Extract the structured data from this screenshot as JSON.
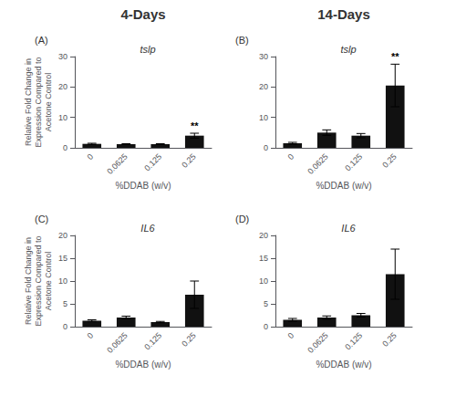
{
  "chart_data": [
    {
      "type": "bar",
      "title": "tslp",
      "categories": [
        "0",
        "0.0625",
        "0.125",
        "0.25"
      ],
      "values": [
        1.3,
        1.2,
        1.2,
        4.0
      ],
      "errors": [
        0.2,
        0.15,
        0.15,
        0.8
      ],
      "color": "#111111",
      "xlabel": "%DDAB (w/v)",
      "ylabel": "Relative Fold Change in\nExpression Compared to\nAcetone Control",
      "ylim": [
        0,
        30
      ],
      "yticks": [
        0,
        10,
        20,
        30
      ],
      "grid": false,
      "annotations": [
        {
          "text": "(A)"
        },
        {
          "text": "4-Days"
        },
        {
          "text": "**",
          "x": "0.25"
        }
      ]
    },
    {
      "type": "bar",
      "title": "tslp",
      "categories": [
        "0",
        "0.0625",
        "0.125",
        "0.25"
      ],
      "values": [
        1.5,
        5.0,
        4.0,
        20.5
      ],
      "errors": [
        0.3,
        0.9,
        0.7,
        7.0
      ],
      "color": "#111111",
      "xlabel": "%DDAB (w/v)",
      "ylim": [
        0,
        30
      ],
      "yticks": [
        0,
        10,
        20,
        30
      ],
      "grid": false,
      "annotations": [
        {
          "text": "(B)"
        },
        {
          "text": "14-Days"
        },
        {
          "text": "**",
          "x": "0.25"
        }
      ]
    },
    {
      "type": "bar",
      "title": "IL6",
      "categories": [
        "0",
        "0.0625",
        "0.125",
        "0.25"
      ],
      "values": [
        1.3,
        2.0,
        1.0,
        7.0
      ],
      "errors": [
        0.2,
        0.3,
        0.15,
        3.0
      ],
      "color": "#111111",
      "xlabel": "%DDAB (w/v)",
      "ylabel": "Relative Fold Change in\nExpression Compared to\nAcetone Control",
      "ylim": [
        0,
        20
      ],
      "yticks": [
        0,
        5,
        10,
        15,
        20
      ],
      "grid": false,
      "annotations": [
        {
          "text": "(C)"
        }
      ]
    },
    {
      "type": "bar",
      "title": "IL6",
      "categories": [
        "0",
        "0.0625",
        "0.125",
        "0.25"
      ],
      "values": [
        1.5,
        2.0,
        2.5,
        11.5
      ],
      "errors": [
        0.3,
        0.35,
        0.4,
        5.5
      ],
      "color": "#111111",
      "xlabel": "%DDAB (w/v)",
      "ylim": [
        0,
        20
      ],
      "yticks": [
        0,
        5,
        10,
        15,
        20
      ],
      "grid": false,
      "annotations": [
        {
          "text": "(D)"
        }
      ]
    }
  ]
}
